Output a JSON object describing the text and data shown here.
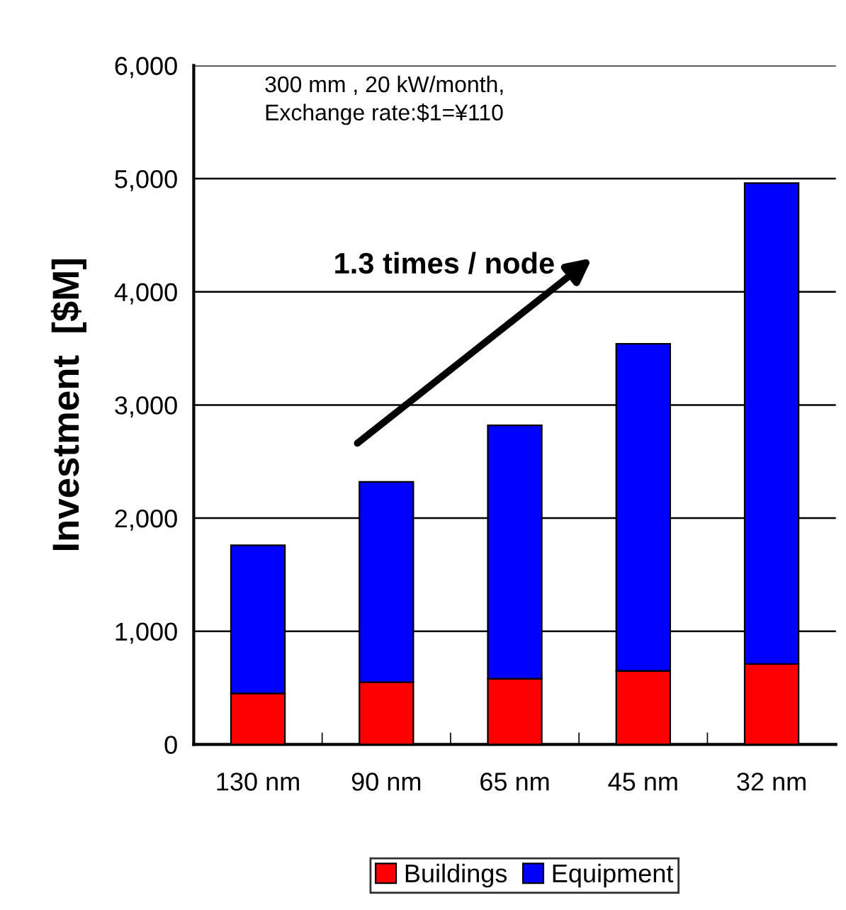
{
  "chart_data": {
    "type": "bar",
    "stacked": true,
    "ylabel": "Investment  [$M]",
    "categories": [
      "130 nm",
      "90 nm",
      "65 nm",
      "45 nm",
      "32 nm"
    ],
    "series": [
      {
        "name": "Buildings",
        "color": "#ff0000",
        "values": [
          450,
          550,
          580,
          650,
          710
        ]
      },
      {
        "name": "Equipment",
        "color": "#0000ff",
        "values": [
          1310,
          1770,
          2240,
          2890,
          4250
        ]
      }
    ],
    "ylim": [
      0,
      6000
    ],
    "yticks": [
      {
        "value": 0,
        "label": "0"
      },
      {
        "value": 1000,
        "label": "1,000"
      },
      {
        "value": 2000,
        "label": "2,000"
      },
      {
        "value": 3000,
        "label": "3,000"
      },
      {
        "value": 4000,
        "label": "4,000"
      },
      {
        "value": 5000,
        "label": "5,000"
      },
      {
        "value": 6000,
        "label": "6,000"
      }
    ],
    "grid": "y",
    "legend": "bottom",
    "annotations": [
      "300 mm , 20 kW/month,\nExchange rate:$1=¥110",
      "1.3 times / node"
    ]
  }
}
